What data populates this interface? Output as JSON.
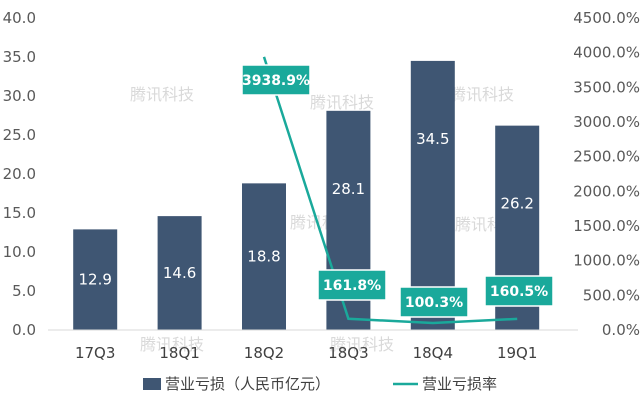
{
  "chart_data": {
    "type": "bar",
    "categories": [
      "17Q3",
      "18Q1",
      "18Q2",
      "18Q3",
      "18Q4",
      "19Q1"
    ],
    "series": [
      {
        "name": "营业亏损（人民币亿元）",
        "type": "bar",
        "axis": "left",
        "values": [
          12.9,
          14.6,
          18.8,
          28.1,
          34.5,
          26.2
        ],
        "labels": [
          "12.9",
          "14.6",
          "18.8",
          "28.1",
          "34.5",
          "26.2"
        ],
        "color": "#3f5673"
      },
      {
        "name": "营业亏损率",
        "type": "line",
        "axis": "right",
        "x": [
          "18Q2",
          "18Q3",
          "18Q4",
          "19Q1"
        ],
        "values": [
          3938.9,
          161.8,
          100.3,
          160.5
        ],
        "labels": [
          "3938.9%",
          "161.8%",
          "100.3%",
          "160.5%"
        ],
        "color": "#1aa99b"
      }
    ],
    "y_left": {
      "range": [
        0,
        40
      ],
      "ticks": [
        "0.0",
        "5.0",
        "10.0",
        "15.0",
        "20.0",
        "25.0",
        "30.0",
        "35.0",
        "40.0"
      ]
    },
    "y_right": {
      "range": [
        0,
        4500
      ],
      "ticks": [
        "0.0%",
        "500.0%",
        "1000.0%",
        "1500.0%",
        "2000.0%",
        "2500.0%",
        "3000.0%",
        "3500.0%",
        "4000.0%",
        "4500.0%"
      ]
    },
    "legend_position": "bottom",
    "grid": false,
    "watermark": "腾讯科技"
  }
}
